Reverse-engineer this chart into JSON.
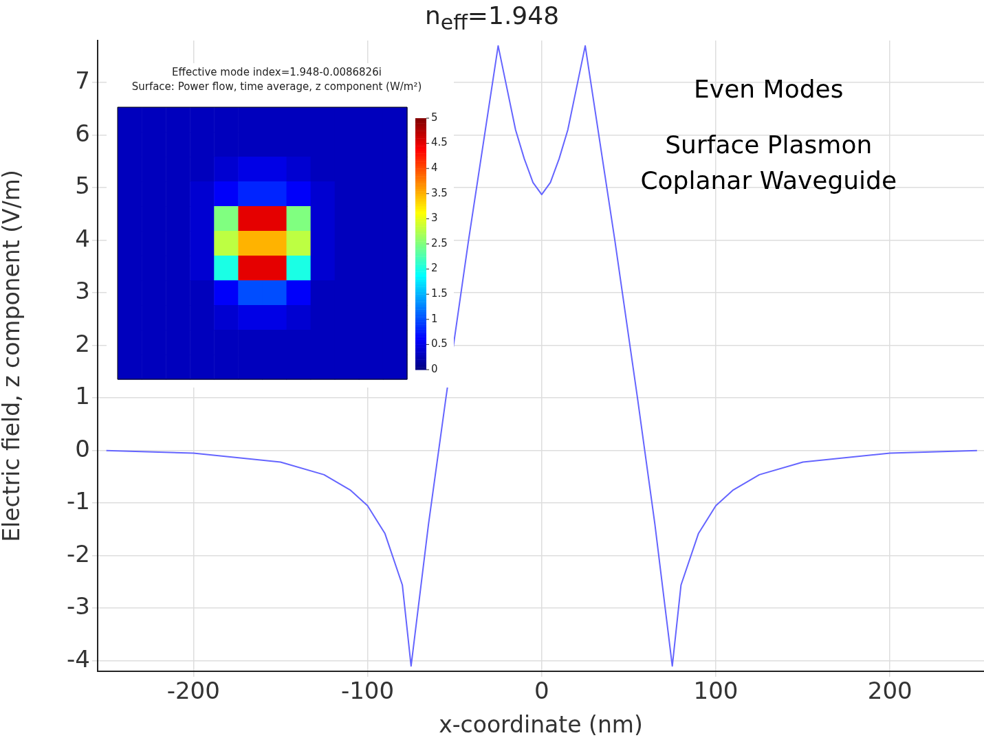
{
  "chart_data": [
    {
      "type": "line",
      "title": "n$_{eff}$=1.948",
      "xlabel": "x-coordinate (nm)",
      "ylabel": "Electric field, z component (V/m)",
      "x": [
        -250,
        -200,
        -150,
        -125,
        -110,
        -100,
        -90,
        -80,
        -75,
        -65,
        -55,
        -42,
        -25,
        -20,
        -15,
        -10,
        -5,
        0,
        5,
        10,
        15,
        20,
        25,
        42,
        55,
        65,
        75,
        80,
        90,
        100,
        110,
        125,
        150,
        200,
        250
      ],
      "series": [
        {
          "color": "#6464ff",
          "values": [
            0,
            -0.05,
            -0.22,
            -0.46,
            -0.75,
            -1.05,
            -1.58,
            -2.56,
            -4.1,
            -1.4,
            1.0,
            4.0,
            7.7,
            6.9,
            6.1,
            5.55,
            5.1,
            4.87,
            5.1,
            5.55,
            6.1,
            6.9,
            7.7,
            4.0,
            1.0,
            -1.4,
            -4.1,
            -2.56,
            -1.58,
            -1.05,
            -0.75,
            -0.46,
            -0.22,
            -0.05,
            0
          ]
        }
      ],
      "xlim": [
        -255,
        254
      ],
      "xticks": [
        -200,
        -100,
        0,
        100,
        200
      ],
      "ylim": [
        -4.2,
        7.8
      ],
      "yticks": [
        -4,
        -3,
        -2,
        -1,
        0,
        1,
        2,
        3,
        4,
        5,
        6,
        7
      ],
      "grid": true,
      "legend": false,
      "marker": "none",
      "line_style": "solid",
      "annotations": [
        "Even Modes",
        "Surface Plasmon",
        "Coplanar Waveguide"
      ]
    },
    {
      "type": "heatmap",
      "title": "Effective mode index=1.948-0.0086826i",
      "subtitle": "Surface: Power flow, time average, z component (W/m²)",
      "categories": [
        null,
        null,
        null,
        null,
        null,
        null,
        null,
        null,
        null,
        null,
        null,
        null
      ],
      "y_categories": [
        null,
        null,
        null,
        null,
        null,
        null,
        null,
        null,
        null,
        null,
        null
      ],
      "cells": [
        [
          0.3,
          0.3,
          0.3,
          0.3,
          0.3,
          0.3,
          0.3,
          0.3,
          0.3,
          0.3,
          0.3,
          0.3
        ],
        [
          0.3,
          0.3,
          0.3,
          0.3,
          0.3,
          0.3,
          0.3,
          0.3,
          0.3,
          0.3,
          0.3,
          0.3
        ],
        [
          0.3,
          0.3,
          0.3,
          0.3,
          0.4,
          0.5,
          0.5,
          0.4,
          0.3,
          0.3,
          0.3,
          0.3
        ],
        [
          0.3,
          0.3,
          0.3,
          0.4,
          0.6,
          0.8,
          0.8,
          0.6,
          0.4,
          0.3,
          0.3,
          0.3
        ],
        [
          0.3,
          0.3,
          0.3,
          0.4,
          2.5,
          4.5,
          4.5,
          2.5,
          0.4,
          0.3,
          0.3,
          0.3
        ],
        [
          0.3,
          0.3,
          0.3,
          0.4,
          2.8,
          3.5,
          3.5,
          2.8,
          0.4,
          0.3,
          0.3,
          0.3
        ],
        [
          0.3,
          0.3,
          0.3,
          0.4,
          2.0,
          4.5,
          4.5,
          2.0,
          0.4,
          0.3,
          0.3,
          0.3
        ],
        [
          0.3,
          0.3,
          0.3,
          0.3,
          0.6,
          1.0,
          1.0,
          0.6,
          0.3,
          0.3,
          0.3,
          0.3
        ],
        [
          0.3,
          0.3,
          0.3,
          0.3,
          0.4,
          0.5,
          0.5,
          0.4,
          0.3,
          0.3,
          0.3,
          0.3
        ],
        [
          0.3,
          0.3,
          0.3,
          0.3,
          0.3,
          0.3,
          0.3,
          0.3,
          0.3,
          0.3,
          0.3,
          0.3
        ],
        [
          0.3,
          0.3,
          0.3,
          0.3,
          0.3,
          0.3,
          0.3,
          0.3,
          0.3,
          0.3,
          0.3,
          0.3
        ]
      ],
      "clim": [
        0,
        5
      ],
      "cticks": [
        0,
        0.5,
        1,
        1.5,
        2,
        2.5,
        3,
        3.5,
        4,
        4.5,
        5
      ]
    }
  ]
}
